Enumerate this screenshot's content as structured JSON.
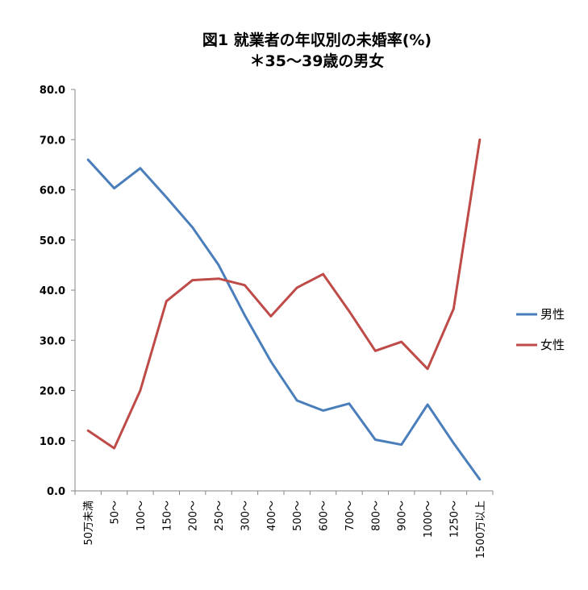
{
  "chart_data": {
    "type": "line",
    "title": "図1  就業者の年収別の未婚率(%)",
    "subtitle": "＊35～39歳の男女",
    "xlabel": "",
    "ylabel": "",
    "categories": [
      "50万未満",
      "50～",
      "100～",
      "150～",
      "200～",
      "250～",
      "300～",
      "400～",
      "500～",
      "600～",
      "700～",
      "800～",
      "900～",
      "1000～",
      "1250～",
      "1500万以上"
    ],
    "ylim": [
      0,
      80
    ],
    "yticks": [
      "0.0",
      "10.0",
      "20.0",
      "30.0",
      "40.0",
      "50.0",
      "60.0",
      "70.0",
      "80.0"
    ],
    "ytick_values": [
      0,
      10,
      20,
      30,
      40,
      50,
      60,
      70,
      80
    ],
    "grid": false,
    "legend_position": "right",
    "series": [
      {
        "name": "男性",
        "color": "#4a7ebb",
        "values": [
          66.0,
          60.3,
          64.3,
          58.5,
          52.5,
          45.0,
          35.0,
          25.8,
          18.0,
          16.0,
          17.4,
          10.2,
          9.2,
          17.2,
          9.5,
          2.3
        ]
      },
      {
        "name": "女性",
        "color": "#be4b48",
        "values": [
          12.0,
          8.5,
          20.0,
          37.8,
          42.0,
          42.3,
          41.0,
          34.8,
          40.5,
          43.2,
          35.8,
          27.9,
          29.7,
          24.3,
          36.3,
          70.0
        ]
      }
    ]
  }
}
